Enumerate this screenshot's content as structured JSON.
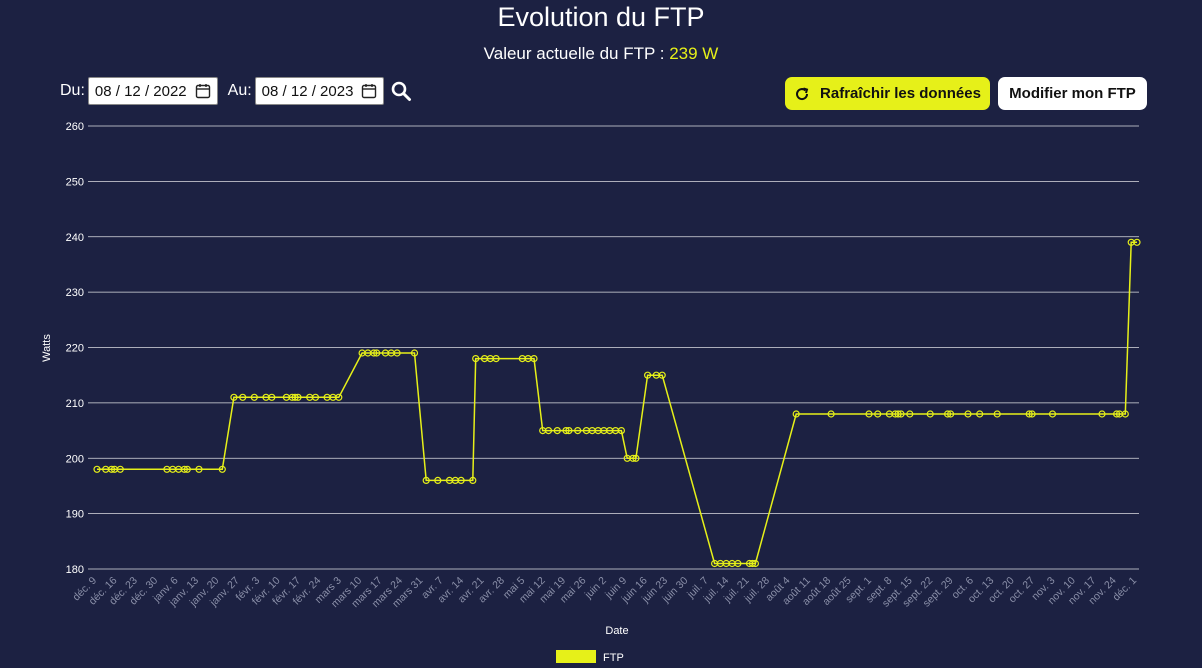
{
  "header": {
    "title": "Evolution du FTP",
    "subtitle_prefix": "Valeur actuelle du FTP : ",
    "subtitle_value": "239 W"
  },
  "filters": {
    "from_label": "Du:",
    "from_value": "08 / 12 / 2022",
    "to_label": "Au:",
    "to_value": "08 / 12 / 2023"
  },
  "buttons": {
    "refresh_label": "Rafraîchir les données",
    "modify_label": "Modifier mon FTP"
  },
  "icons": {
    "from_calendar": "calendar-icon",
    "to_calendar": "calendar-icon",
    "search": "search-icon",
    "refresh": "refresh-icon"
  },
  "colors": {
    "background": "#1c2142",
    "accent": "#e6f019",
    "grid": "#ffffff",
    "tick_x": "#8a8fa8"
  },
  "chart_data": {
    "type": "line",
    "xlabel": "Date",
    "ylabel": "Watts",
    "ylim": [
      180,
      260
    ],
    "yticks": [
      180,
      190,
      200,
      210,
      220,
      230,
      240,
      250,
      260
    ],
    "x_ticks": [
      "déc. 9",
      "déc. 16",
      "déc. 23",
      "déc. 30",
      "janv. 6",
      "janv. 13",
      "janv. 20",
      "janv. 27",
      "févr. 3",
      "févr. 10",
      "févr. 17",
      "févr. 24",
      "mars 3",
      "mars 10",
      "mars 17",
      "mars 24",
      "mars 31",
      "avr. 7",
      "avr. 14",
      "avr. 21",
      "avr. 28",
      "mai 5",
      "mai 12",
      "mai 19",
      "mai 26",
      "juin 2",
      "juin 9",
      "juin 16",
      "juin 23",
      "juin 30",
      "juil. 7",
      "juil. 14",
      "juil. 21",
      "juil. 28",
      "août 4",
      "août 11",
      "août 18",
      "août 25",
      "sept. 1",
      "sept. 8",
      "sept. 15",
      "sept. 22",
      "sept. 29",
      "oct. 6",
      "oct. 13",
      "oct. 20",
      "oct. 27",
      "nov. 3",
      "nov. 10",
      "nov. 17",
      "nov. 24",
      "déc. 1"
    ],
    "legend_position": "bottom",
    "series": [
      {
        "name": "FTP",
        "color": "#e6f019",
        "points": [
          [
            "2022-12-09",
            198
          ],
          [
            "2022-12-12",
            198
          ],
          [
            "2022-12-14",
            198
          ],
          [
            "2022-12-15",
            198
          ],
          [
            "2022-12-17",
            198
          ],
          [
            "2023-01-02",
            198
          ],
          [
            "2023-01-04",
            198
          ],
          [
            "2023-01-06",
            198
          ],
          [
            "2023-01-08",
            198
          ],
          [
            "2023-01-09",
            198
          ],
          [
            "2023-01-13",
            198
          ],
          [
            "2023-01-21",
            198
          ],
          [
            "2023-01-25",
            211
          ],
          [
            "2023-01-28",
            211
          ],
          [
            "2023-02-01",
            211
          ],
          [
            "2023-02-05",
            211
          ],
          [
            "2023-02-07",
            211
          ],
          [
            "2023-02-12",
            211
          ],
          [
            "2023-02-14",
            211
          ],
          [
            "2023-02-15",
            211
          ],
          [
            "2023-02-16",
            211
          ],
          [
            "2023-02-20",
            211
          ],
          [
            "2023-02-22",
            211
          ],
          [
            "2023-02-26",
            211
          ],
          [
            "2023-02-28",
            211
          ],
          [
            "2023-03-02",
            211
          ],
          [
            "2023-03-10",
            219
          ],
          [
            "2023-03-12",
            219
          ],
          [
            "2023-03-14",
            219
          ],
          [
            "2023-03-15",
            219
          ],
          [
            "2023-03-18",
            219
          ],
          [
            "2023-03-20",
            219
          ],
          [
            "2023-03-22",
            219
          ],
          [
            "2023-03-28",
            219
          ],
          [
            "2023-04-01",
            196
          ],
          [
            "2023-04-05",
            196
          ],
          [
            "2023-04-09",
            196
          ],
          [
            "2023-04-11",
            196
          ],
          [
            "2023-04-13",
            196
          ],
          [
            "2023-04-17",
            196
          ],
          [
            "2023-04-18",
            218
          ],
          [
            "2023-04-21",
            218
          ],
          [
            "2023-04-23",
            218
          ],
          [
            "2023-04-25",
            218
          ],
          [
            "2023-05-04",
            218
          ],
          [
            "2023-05-06",
            218
          ],
          [
            "2023-05-08",
            218
          ],
          [
            "2023-05-11",
            205
          ],
          [
            "2023-05-13",
            205
          ],
          [
            "2023-05-16",
            205
          ],
          [
            "2023-05-19",
            205
          ],
          [
            "2023-05-20",
            205
          ],
          [
            "2023-05-23",
            205
          ],
          [
            "2023-05-26",
            205
          ],
          [
            "2023-05-28",
            205
          ],
          [
            "2023-05-30",
            205
          ],
          [
            "2023-06-01",
            205
          ],
          [
            "2023-06-03",
            205
          ],
          [
            "2023-06-05",
            205
          ],
          [
            "2023-06-07",
            205
          ],
          [
            "2023-06-09",
            200
          ],
          [
            "2023-06-11",
            200
          ],
          [
            "2023-06-12",
            200
          ],
          [
            "2023-06-16",
            215
          ],
          [
            "2023-06-19",
            215
          ],
          [
            "2023-06-21",
            215
          ],
          [
            "2023-07-09",
            181
          ],
          [
            "2023-07-11",
            181
          ],
          [
            "2023-07-13",
            181
          ],
          [
            "2023-07-15",
            181
          ],
          [
            "2023-07-17",
            181
          ],
          [
            "2023-07-21",
            181
          ],
          [
            "2023-07-22",
            181
          ],
          [
            "2023-07-23",
            181
          ],
          [
            "2023-08-06",
            208
          ],
          [
            "2023-08-18",
            208
          ],
          [
            "2023-08-31",
            208
          ],
          [
            "2023-09-03",
            208
          ],
          [
            "2023-09-07",
            208
          ],
          [
            "2023-09-09",
            208
          ],
          [
            "2023-09-10",
            208
          ],
          [
            "2023-09-11",
            208
          ],
          [
            "2023-09-14",
            208
          ],
          [
            "2023-09-21",
            208
          ],
          [
            "2023-09-27",
            208
          ],
          [
            "2023-09-28",
            208
          ],
          [
            "2023-10-04",
            208
          ],
          [
            "2023-10-08",
            208
          ],
          [
            "2023-10-14",
            208
          ],
          [
            "2023-10-25",
            208
          ],
          [
            "2023-10-26",
            208
          ],
          [
            "2023-11-02",
            208
          ],
          [
            "2023-11-19",
            208
          ],
          [
            "2023-11-24",
            208
          ],
          [
            "2023-11-25",
            208
          ],
          [
            "2023-11-27",
            208
          ],
          [
            "2023-11-29",
            239
          ],
          [
            "2023-12-01",
            239
          ]
        ]
      }
    ]
  }
}
